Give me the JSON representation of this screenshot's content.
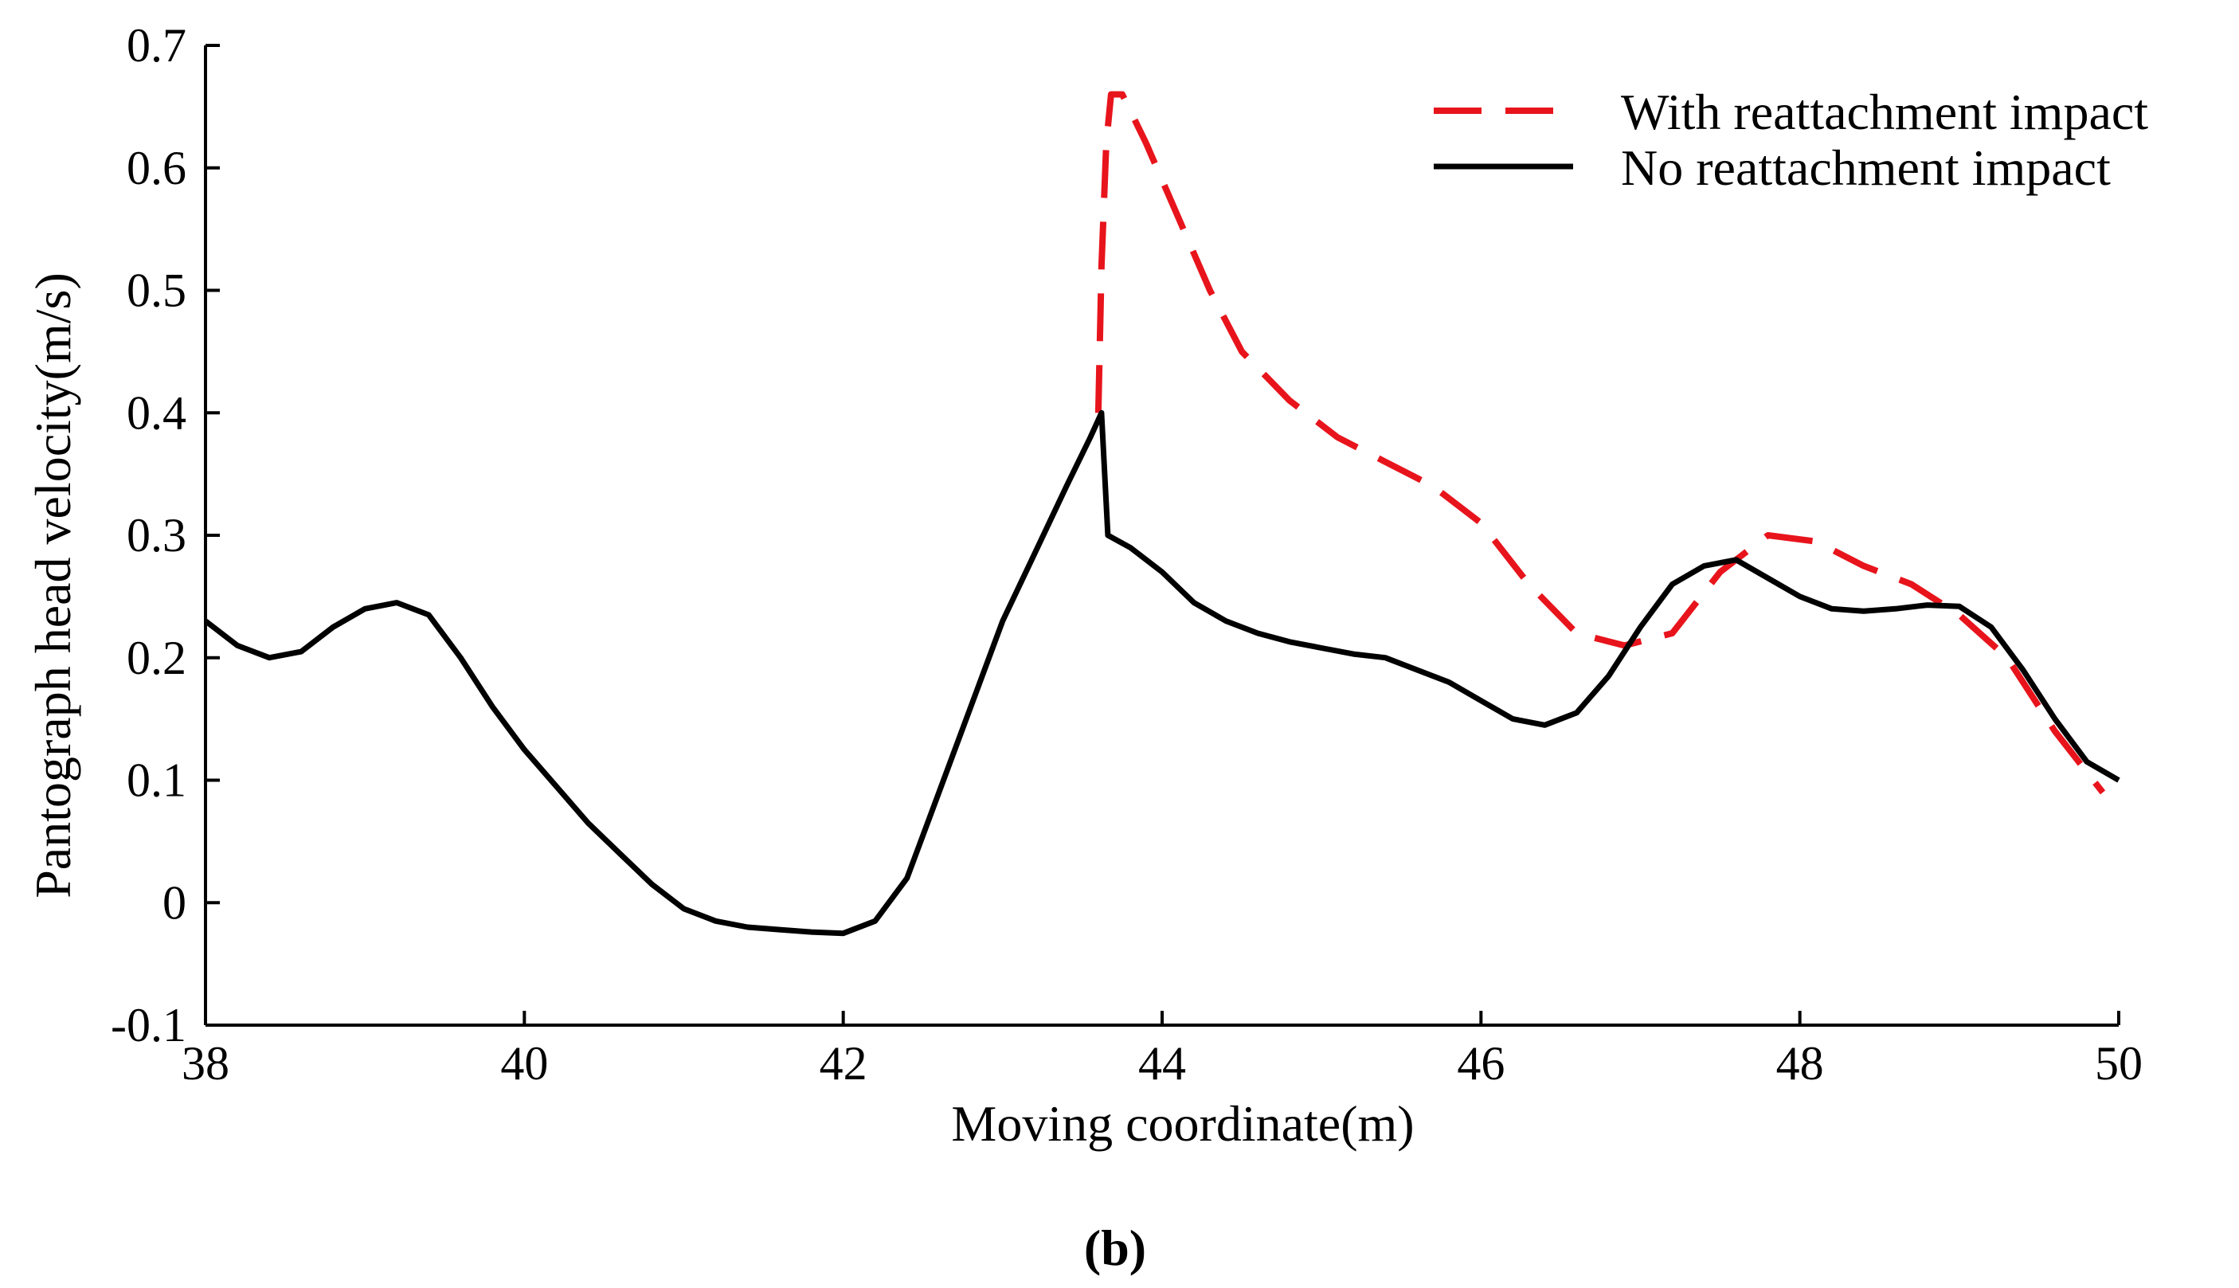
{
  "chart_data": {
    "type": "line",
    "title": "",
    "caption": "(b)",
    "xlabel": "Moving coordinate(m)",
    "ylabel": "Pantograph head velocity(m/s)",
    "xlim": [
      38,
      50
    ],
    "ylim": [
      -0.1,
      0.7
    ],
    "xticks": [
      38,
      40,
      42,
      44,
      46,
      48,
      50
    ],
    "yticks": [
      -0.1,
      0,
      0.1,
      0.2,
      0.3,
      0.4,
      0.5,
      0.6,
      0.7
    ],
    "ytick_labels": [
      "-0.1",
      "0",
      "0.1",
      "0.2",
      "0.3",
      "0.4",
      "0.5",
      "0.6",
      "0.7"
    ],
    "grid": false,
    "legend_position": "top-right",
    "series": [
      {
        "name": "With reattachment impact",
        "color": "#e8141c",
        "dash": "dashed",
        "x": [
          43.6,
          43.62,
          43.65,
          43.68,
          43.75,
          43.9,
          44.1,
          44.3,
          44.5,
          44.8,
          45.1,
          45.4,
          45.7,
          46.0,
          46.3,
          46.6,
          46.9,
          47.2,
          47.5,
          47.8,
          48.1,
          48.4,
          48.7,
          49.0,
          49.3,
          49.6,
          49.9
        ],
        "y": [
          0.4,
          0.52,
          0.62,
          0.66,
          0.66,
          0.62,
          0.56,
          0.5,
          0.45,
          0.41,
          0.38,
          0.36,
          0.34,
          0.31,
          0.26,
          0.22,
          0.21,
          0.22,
          0.27,
          0.3,
          0.295,
          0.275,
          0.26,
          0.235,
          0.2,
          0.14,
          0.09
        ]
      },
      {
        "name": "No reattachment impact",
        "color": "#000000",
        "dash": "solid",
        "x": [
          38.0,
          38.2,
          38.4,
          38.6,
          38.8,
          39.0,
          39.2,
          39.4,
          39.6,
          39.8,
          40.0,
          40.2,
          40.4,
          40.6,
          40.8,
          41.0,
          41.2,
          41.4,
          41.6,
          41.8,
          42.0,
          42.2,
          42.4,
          42.6,
          42.8,
          43.0,
          43.2,
          43.4,
          43.55,
          43.62,
          43.66,
          43.8,
          44.0,
          44.2,
          44.4,
          44.6,
          44.8,
          45.0,
          45.2,
          45.4,
          45.6,
          45.8,
          46.0,
          46.2,
          46.4,
          46.6,
          46.8,
          47.0,
          47.2,
          47.4,
          47.6,
          47.8,
          48.0,
          48.2,
          48.4,
          48.6,
          48.8,
          49.0,
          49.2,
          49.4,
          49.6,
          49.8,
          50.0
        ],
        "y": [
          0.23,
          0.21,
          0.2,
          0.205,
          0.225,
          0.24,
          0.245,
          0.235,
          0.2,
          0.16,
          0.125,
          0.095,
          0.065,
          0.04,
          0.015,
          -0.005,
          -0.015,
          -0.02,
          -0.022,
          -0.024,
          -0.025,
          -0.015,
          0.02,
          0.09,
          0.16,
          0.23,
          0.285,
          0.34,
          0.38,
          0.4,
          0.3,
          0.29,
          0.27,
          0.245,
          0.23,
          0.22,
          0.213,
          0.208,
          0.203,
          0.2,
          0.19,
          0.18,
          0.165,
          0.15,
          0.145,
          0.155,
          0.185,
          0.225,
          0.26,
          0.275,
          0.28,
          0.265,
          0.25,
          0.24,
          0.238,
          0.24,
          0.243,
          0.242,
          0.225,
          0.19,
          0.15,
          0.115,
          0.1
        ]
      }
    ]
  }
}
